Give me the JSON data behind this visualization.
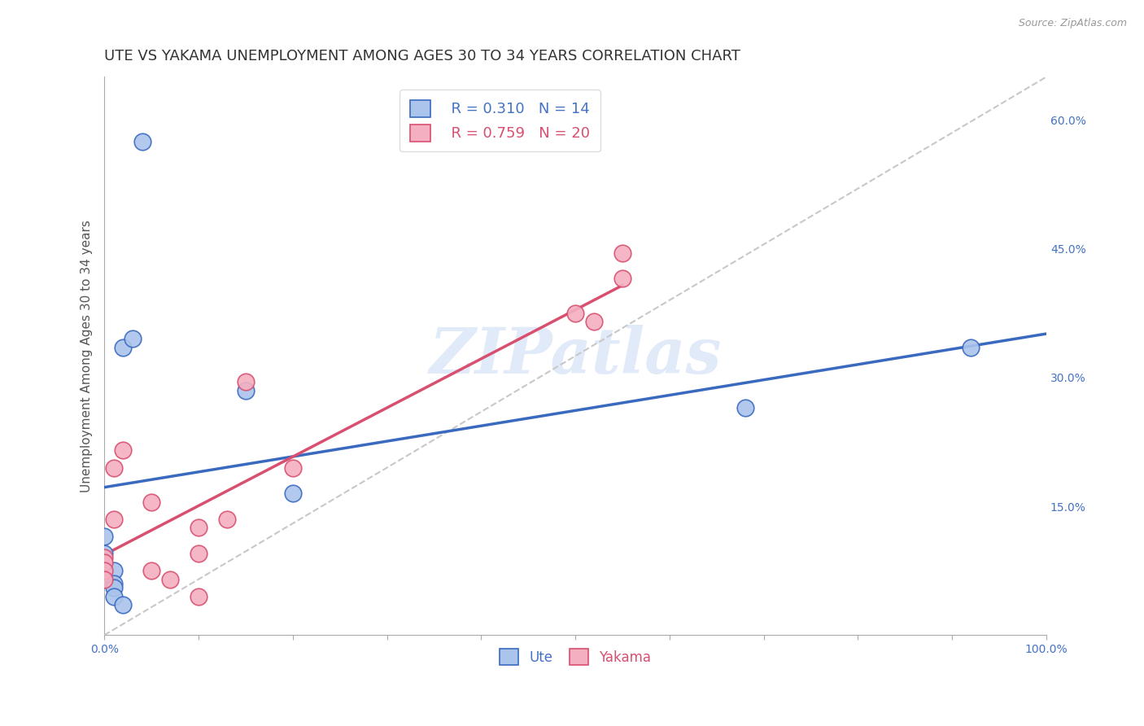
{
  "title": "UTE VS YAKAMA UNEMPLOYMENT AMONG AGES 30 TO 34 YEARS CORRELATION CHART",
  "source": "Source: ZipAtlas.com",
  "ylabel": "Unemployment Among Ages 30 to 34 years",
  "xlim": [
    0,
    1.0
  ],
  "ylim": [
    0,
    0.65
  ],
  "yticks_right": [
    0.15,
    0.3,
    0.45,
    0.6
  ],
  "yticklabels_right": [
    "15.0%",
    "30.0%",
    "45.0%",
    "60.0%"
  ],
  "ute_color": "#aac4ec",
  "yakama_color": "#f4afc0",
  "ute_line_color": "#3a6abf",
  "yakama_line_color": "#d94f70",
  "diagonal_color": "#c8c8c8",
  "legend_ute_r": "R = 0.310",
  "legend_ute_n": "N = 14",
  "legend_yakama_r": "R = 0.759",
  "legend_yakama_n": "N = 20",
  "ute_x": [
    0.04,
    0.02,
    0.03,
    0.15,
    0.2,
    0.0,
    0.0,
    0.01,
    0.01,
    0.01,
    0.01,
    0.02,
    0.92,
    0.68
  ],
  "ute_y": [
    0.575,
    0.335,
    0.345,
    0.285,
    0.165,
    0.115,
    0.095,
    0.075,
    0.06,
    0.055,
    0.045,
    0.035,
    0.335,
    0.265
  ],
  "yakama_x": [
    0.0,
    0.0,
    0.0,
    0.0,
    0.01,
    0.01,
    0.02,
    0.05,
    0.05,
    0.07,
    0.1,
    0.1,
    0.1,
    0.13,
    0.15,
    0.2,
    0.5,
    0.52,
    0.55,
    0.55
  ],
  "yakama_y": [
    0.09,
    0.085,
    0.075,
    0.065,
    0.195,
    0.135,
    0.215,
    0.155,
    0.075,
    0.065,
    0.125,
    0.095,
    0.045,
    0.135,
    0.295,
    0.195,
    0.375,
    0.365,
    0.445,
    0.415
  ],
  "ute_line_x": [
    0.0,
    1.0
  ],
  "yakama_line_x": [
    0.0,
    0.55
  ],
  "diag_line_x": [
    0.0,
    1.0
  ],
  "diag_line_y": [
    0.0,
    0.65
  ],
  "background_color": "#ffffff",
  "grid_color": "#cccccc",
  "watermark_text": "ZIPatlas",
  "title_fontsize": 13,
  "axis_label_fontsize": 11,
  "tick_fontsize": 10,
  "legend_fontsize": 12
}
